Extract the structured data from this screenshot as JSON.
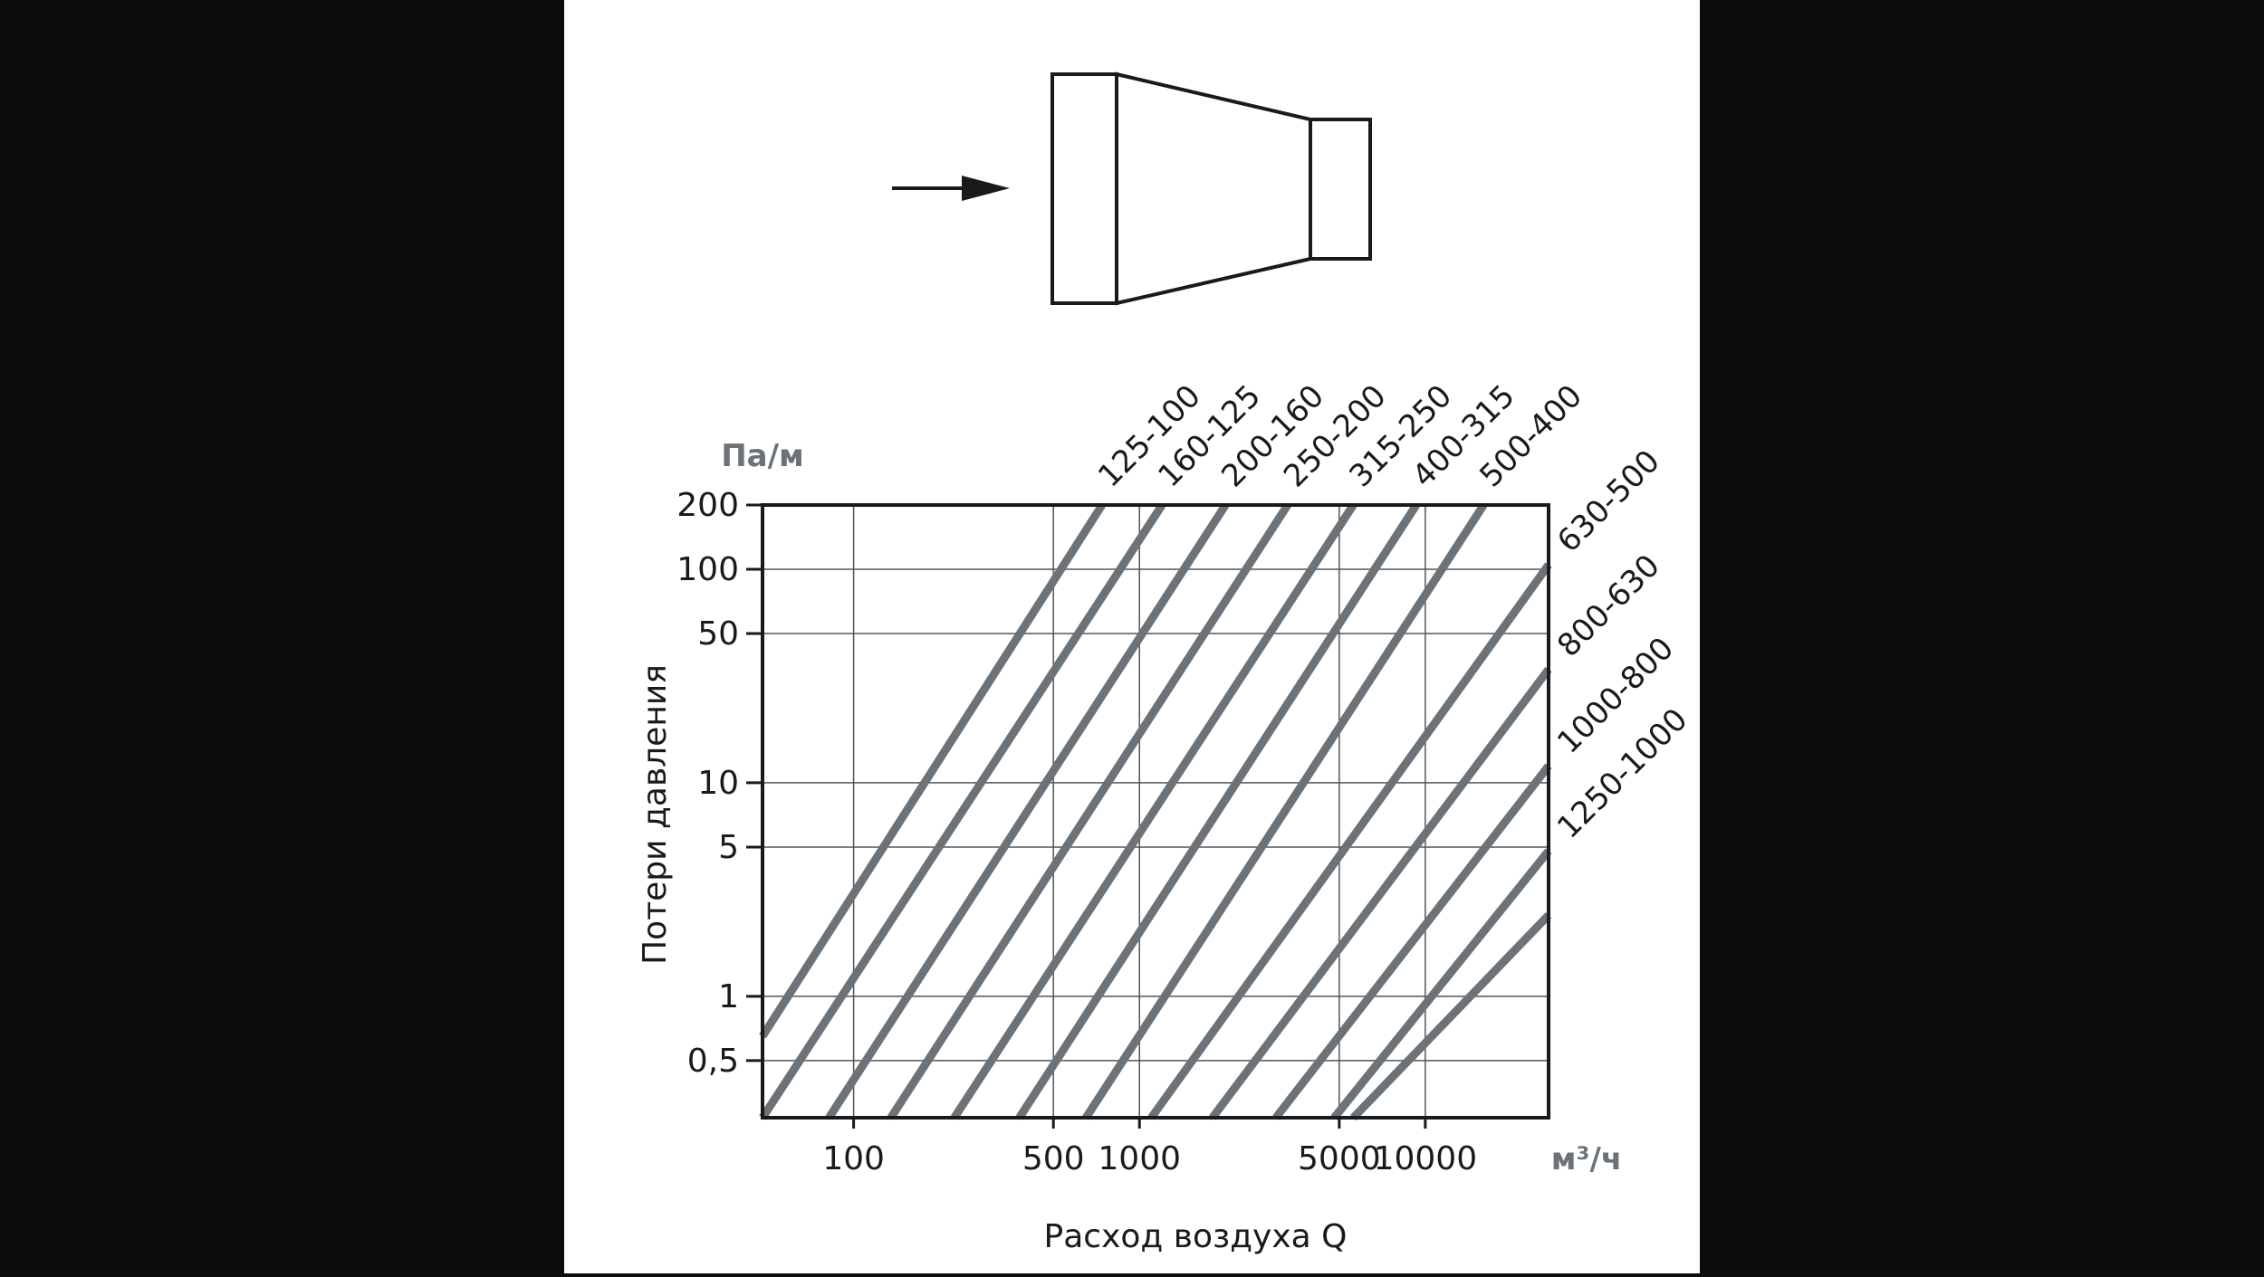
{
  "diagram": {
    "flow_direction": "left-to-right",
    "element": "reducer"
  },
  "chart_data": {
    "type": "line",
    "x_scale": "log",
    "y_scale": "log",
    "grid": true,
    "xlabel": "Расход воздуха Q",
    "ylabel": "Потери давления",
    "x_unit": "м³/ч",
    "y_unit": "Па/м",
    "xlim": [
      48,
      27000
    ],
    "ylim": [
      0.27,
      200
    ],
    "x_ticks": [
      {
        "value": 100,
        "label": "100"
      },
      {
        "value": 500,
        "label": "500"
      },
      {
        "value": 1000,
        "label": "1000"
      },
      {
        "value": 5000,
        "label": "5000"
      },
      {
        "value": 10000,
        "label": "10000"
      }
    ],
    "y_ticks": [
      {
        "value": 200,
        "label": "200"
      },
      {
        "value": 100,
        "label": "100"
      },
      {
        "value": 50,
        "label": "50"
      },
      {
        "value": 10,
        "label": "10"
      },
      {
        "value": 5,
        "label": "5"
      },
      {
        "value": 1,
        "label": "1"
      },
      {
        "value": 0.5,
        "label": "0,5"
      }
    ],
    "series": [
      {
        "name": "125-100",
        "points": [
          [
            48,
            0.65
          ],
          [
            740,
            200
          ]
        ]
      },
      {
        "name": "160-125",
        "points": [
          [
            48,
            0.27
          ],
          [
            1200,
            200
          ]
        ]
      },
      {
        "name": "200-160",
        "points": [
          [
            82,
            0.27
          ],
          [
            2000,
            200
          ]
        ]
      },
      {
        "name": "250-200",
        "points": [
          [
            135,
            0.27
          ],
          [
            3300,
            200
          ]
        ]
      },
      {
        "name": "315-250",
        "points": [
          [
            225,
            0.27
          ],
          [
            5600,
            200
          ]
        ]
      },
      {
        "name": "400-315",
        "points": [
          [
            380,
            0.27
          ],
          [
            9300,
            200
          ]
        ]
      },
      {
        "name": "500-400",
        "points": [
          [
            650,
            0.27
          ],
          [
            16000,
            200
          ]
        ]
      },
      {
        "name": "630-500",
        "points": [
          [
            1100,
            0.27
          ],
          [
            27000,
            105
          ]
        ]
      },
      {
        "name": "800-630",
        "points": [
          [
            1800,
            0.27
          ],
          [
            27000,
            34
          ]
        ]
      },
      {
        "name": "1000-800",
        "points": [
          [
            3000,
            0.27
          ],
          [
            27000,
            12
          ]
        ]
      },
      {
        "name": "1250-1000",
        "points": [
          [
            4800,
            0.27
          ],
          [
            27000,
            4.8
          ]
        ]
      },
      {
        "name": "",
        "points": [
          [
            5600,
            0.27
          ],
          [
            27000,
            2.4
          ]
        ]
      }
    ]
  },
  "colors": {
    "background": "#0c0c0c",
    "panel": "#ffffff",
    "axis": "#1a1a1a",
    "grid": "#555555",
    "series": "#6b7278",
    "unit_label": "#6b7278",
    "text": "#1a1a1a"
  }
}
